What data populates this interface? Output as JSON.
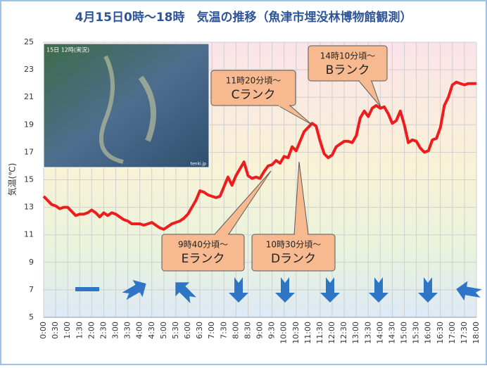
{
  "chart_data": {
    "type": "line",
    "title": "4月15日0時～18時　気温の推移（魚津市埋没林博物館観測）",
    "y_label": "気温(℃)",
    "map_caption": "15日 12時(実況)",
    "map_credit": "tenki.jp",
    "xlim": [
      0,
      1080
    ],
    "xticks": [
      {
        "value": 0,
        "label": "0:00"
      },
      {
        "value": 30,
        "label": "0:30"
      },
      {
        "value": 60,
        "label": "1:00"
      },
      {
        "value": 90,
        "label": "1:30"
      },
      {
        "value": 120,
        "label": "2:00"
      },
      {
        "value": 150,
        "label": "2:30"
      },
      {
        "value": 180,
        "label": "3:00"
      },
      {
        "value": 210,
        "label": "3:30"
      },
      {
        "value": 240,
        "label": "4:00"
      },
      {
        "value": 270,
        "label": "4:30"
      },
      {
        "value": 300,
        "label": "5:00"
      },
      {
        "value": 330,
        "label": "5:30"
      },
      {
        "value": 360,
        "label": "6:00"
      },
      {
        "value": 390,
        "label": "6:30"
      },
      {
        "value": 420,
        "label": "7:00"
      },
      {
        "value": 450,
        "label": "7:30"
      },
      {
        "value": 480,
        "label": "8:00"
      },
      {
        "value": 510,
        "label": "8:30"
      },
      {
        "value": 540,
        "label": "9:00"
      },
      {
        "value": 570,
        "label": "9:30"
      },
      {
        "value": 600,
        "label": "10:00"
      },
      {
        "value": 630,
        "label": "10:30"
      },
      {
        "value": 660,
        "label": "11:00"
      },
      {
        "value": 690,
        "label": "11:30"
      },
      {
        "value": 720,
        "label": "12:00"
      },
      {
        "value": 750,
        "label": "12:30"
      },
      {
        "value": 780,
        "label": "13:00"
      },
      {
        "value": 810,
        "label": "13:30"
      },
      {
        "value": 840,
        "label": "14:00"
      },
      {
        "value": 870,
        "label": "14:30"
      },
      {
        "value": 900,
        "label": "15:00"
      },
      {
        "value": 930,
        "label": "15:30"
      },
      {
        "value": 960,
        "label": "16:00"
      },
      {
        "value": 990,
        "label": "16:30"
      },
      {
        "value": 1020,
        "label": "17:00"
      },
      {
        "value": 1050,
        "label": "17:30"
      },
      {
        "value": 1080,
        "label": "18:00"
      }
    ],
    "ylim": [
      5,
      25
    ],
    "yticks": [
      5,
      7,
      9,
      11,
      13,
      15,
      17,
      19,
      21,
      23,
      25
    ],
    "grid": true,
    "x": [
      0,
      10,
      20,
      30,
      40,
      50,
      60,
      70,
      80,
      90,
      100,
      110,
      120,
      130,
      140,
      150,
      160,
      170,
      180,
      190,
      200,
      210,
      220,
      230,
      240,
      250,
      260,
      270,
      280,
      290,
      300,
      310,
      320,
      330,
      340,
      350,
      360,
      370,
      380,
      390,
      400,
      410,
      420,
      430,
      440,
      450,
      460,
      470,
      480,
      490,
      500,
      510,
      520,
      530,
      540,
      550,
      560,
      570,
      580,
      590,
      600,
      610,
      620,
      630,
      640,
      650,
      660,
      670,
      680,
      690,
      700,
      710,
      720,
      730,
      740,
      750,
      760,
      770,
      780,
      790,
      800,
      810,
      820,
      830,
      840,
      850,
      860,
      870,
      880,
      890,
      900,
      910,
      920,
      930,
      940,
      950,
      960,
      970,
      980,
      990,
      1000,
      1010,
      1020,
      1030,
      1040,
      1050,
      1060,
      1070,
      1080
    ],
    "series": [
      {
        "color": "#ee1c1c",
        "values": [
          13.8,
          13.5,
          13.2,
          13.1,
          12.9,
          13.0,
          13.0,
          12.7,
          12.4,
          12.5,
          12.5,
          12.6,
          12.8,
          12.6,
          12.3,
          12.6,
          12.4,
          12.6,
          12.5,
          12.3,
          12.1,
          12.0,
          11.8,
          11.8,
          11.8,
          11.7,
          11.8,
          11.9,
          11.7,
          11.5,
          11.4,
          11.6,
          11.8,
          11.9,
          12.0,
          12.2,
          12.5,
          13.0,
          13.5,
          14.2,
          14.1,
          13.9,
          13.8,
          13.7,
          13.8,
          14.5,
          15.2,
          14.6,
          15.3,
          15.8,
          16.3,
          15.3,
          15.1,
          15.2,
          15.1,
          15.6,
          16.0,
          16.1,
          16.4,
          16.2,
          16.7,
          16.6,
          17.4,
          17.1,
          17.8,
          18.5,
          18.8,
          19.1,
          18.9,
          17.8,
          16.9,
          16.6,
          16.8,
          17.4,
          17.6,
          17.8,
          17.8,
          17.7,
          18.2,
          19.5,
          20.0,
          19.6,
          20.2,
          20.4,
          20.2,
          20.3,
          19.8,
          19.1,
          19.3,
          20.0,
          19.0,
          17.7,
          17.9,
          17.8,
          17.3,
          17.0,
          17.1,
          17.9,
          18.0,
          18.8,
          20.4,
          21.0,
          21.9,
          22.1,
          22.0,
          21.9,
          22.0,
          22.0,
          22.0
        ]
      }
    ],
    "annotations": [
      {
        "line1": "11時20分頃～",
        "line2": "Cランク"
      },
      {
        "line1": "14時10分頃～",
        "line2": "Bランク"
      },
      {
        "line1": "9時40分頃～",
        "line2": "Eランク"
      },
      {
        "line1": "10時30分頃～",
        "line2": "Dランク"
      }
    ]
  }
}
